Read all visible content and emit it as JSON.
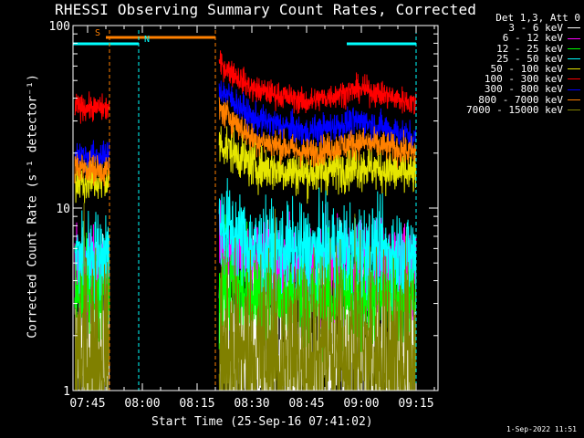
{
  "chart_data": {
    "type": "line",
    "title": "RHESSI Observing Summary Count Rates, Corrected",
    "xlabel": "Start Time (25-Sep-16 07:41:02)",
    "ylabel": "Corrected Count Rate (s⁻¹ detector⁻¹)",
    "y_scale": "log",
    "ylim": [
      1,
      100
    ],
    "y_ticks": [
      {
        "value": 1,
        "label": "1"
      },
      {
        "value": 10,
        "label": "10"
      },
      {
        "value": 100,
        "label": "100"
      }
    ],
    "xlim": [
      "07:41",
      "09:21"
    ],
    "x_ticks": [
      "07:45",
      "08:00",
      "08:15",
      "08:30",
      "08:45",
      "09:00",
      "09:15"
    ],
    "legend": {
      "header": "Det 1,3, Att 0",
      "placement": "right-outside",
      "entries": [
        {
          "label": "3 - 6 keV",
          "color": "#ffffff"
        },
        {
          "label": "6 - 12 keV",
          "color": "#ff00ff"
        },
        {
          "label": "12 - 25 keV",
          "color": "#00ff00"
        },
        {
          "label": "25 - 50 keV",
          "color": "#00ffff"
        },
        {
          "label": "50 - 100 keV",
          "color": "#e6e600"
        },
        {
          "label": "100 - 300 keV",
          "color": "#ff0000"
        },
        {
          "label": "300 - 800 keV",
          "color": "#0000ff"
        },
        {
          "label": "800 - 7000 keV",
          "color": "#ff8000"
        },
        {
          "label": "7000 - 15000 keV",
          "color": "#808000"
        }
      ]
    },
    "flags": [
      {
        "label": "S",
        "start": "07:50",
        "end": "08:20",
        "color": "#ff8000"
      },
      {
        "label": "N",
        "start": "07:41",
        "end": "07:59",
        "color": "#00ffff"
      },
      {
        "label": "",
        "start": "08:56",
        "end": "09:15",
        "color": "#00ffff"
      }
    ],
    "markers": [
      {
        "time": "07:51",
        "color": "#ff8000"
      },
      {
        "time": "07:59",
        "color": "#00ffff"
      },
      {
        "time": "08:20",
        "color": "#ff8000"
      },
      {
        "time": "09:15",
        "color": "#00ffff"
      }
    ],
    "gaps": [
      [
        "07:51",
        "08:21"
      ]
    ],
    "series": [
      {
        "name": "3 - 6 keV",
        "color": "#ffffff",
        "times": [
          "07:41",
          "07:50",
          "08:21",
          "08:30",
          "08:45",
          "09:00",
          "09:15"
        ],
        "values": [
          1.6,
          1.6,
          1.6,
          1.6,
          1.5,
          1.6,
          1.6
        ],
        "noise": 0.3
      },
      {
        "name": "6 - 12 keV",
        "color": "#ff00ff",
        "times": [
          "07:41",
          "07:50",
          "08:21",
          "08:30",
          "08:45",
          "09:00",
          "09:15"
        ],
        "values": [
          4.5,
          4.5,
          6,
          5,
          4.5,
          5,
          4.8
        ],
        "noise": 0.12
      },
      {
        "name": "12 - 25 keV",
        "color": "#00ff00",
        "times": [
          "07:41",
          "07:50",
          "08:21",
          "08:30",
          "08:45",
          "09:00",
          "09:15"
        ],
        "values": [
          3.3,
          3.3,
          3.8,
          3.3,
          3.2,
          3.3,
          3.3
        ],
        "noise": 0.14
      },
      {
        "name": "25 - 50 keV",
        "color": "#00ffff",
        "times": [
          "07:41",
          "07:50",
          "08:21",
          "08:30",
          "08:45",
          "09:00",
          "09:15"
        ],
        "values": [
          5.5,
          5.5,
          8.5,
          6,
          5.8,
          6,
          5.5
        ],
        "noise": 0.12
      },
      {
        "name": "50 - 100 keV",
        "color": "#e6e600",
        "times": [
          "07:41",
          "07:50",
          "08:21",
          "08:30",
          "08:45",
          "09:00",
          "09:15"
        ],
        "values": [
          14,
          14,
          23,
          17,
          15.5,
          17,
          15
        ],
        "noise": 0.06
      },
      {
        "name": "100 - 300 keV",
        "color": "#ff0000",
        "times": [
          "07:41",
          "07:50",
          "08:21",
          "08:30",
          "08:45",
          "09:00",
          "09:15"
        ],
        "values": [
          36,
          35,
          62,
          45,
          38,
          45,
          37
        ],
        "noise": 0.035
      },
      {
        "name": "300 - 800 keV",
        "color": "#0000ff",
        "times": [
          "07:41",
          "07:50",
          "08:21",
          "08:30",
          "08:45",
          "09:00",
          "09:15"
        ],
        "values": [
          20,
          19,
          45,
          31,
          26,
          30,
          24
        ],
        "noise": 0.04
      },
      {
        "name": "800 - 7000 keV",
        "color": "#ff8000",
        "times": [
          "07:41",
          "07:50",
          "08:21",
          "08:30",
          "08:45",
          "09:00",
          "09:15"
        ],
        "values": [
          17,
          16,
          35,
          24,
          20,
          23,
          20
        ],
        "noise": 0.04
      },
      {
        "name": "7000 - 15000 keV",
        "color": "#808000",
        "times": [
          "07:41",
          "07:50",
          "08:21",
          "08:30",
          "08:45",
          "09:00",
          "09:15"
        ],
        "values": [
          1.5,
          1.5,
          1.5,
          1.5,
          1.5,
          1.5,
          1.5
        ],
        "noise": 0.3
      }
    ]
  },
  "timestamp": "1-Sep-2022 11:51"
}
